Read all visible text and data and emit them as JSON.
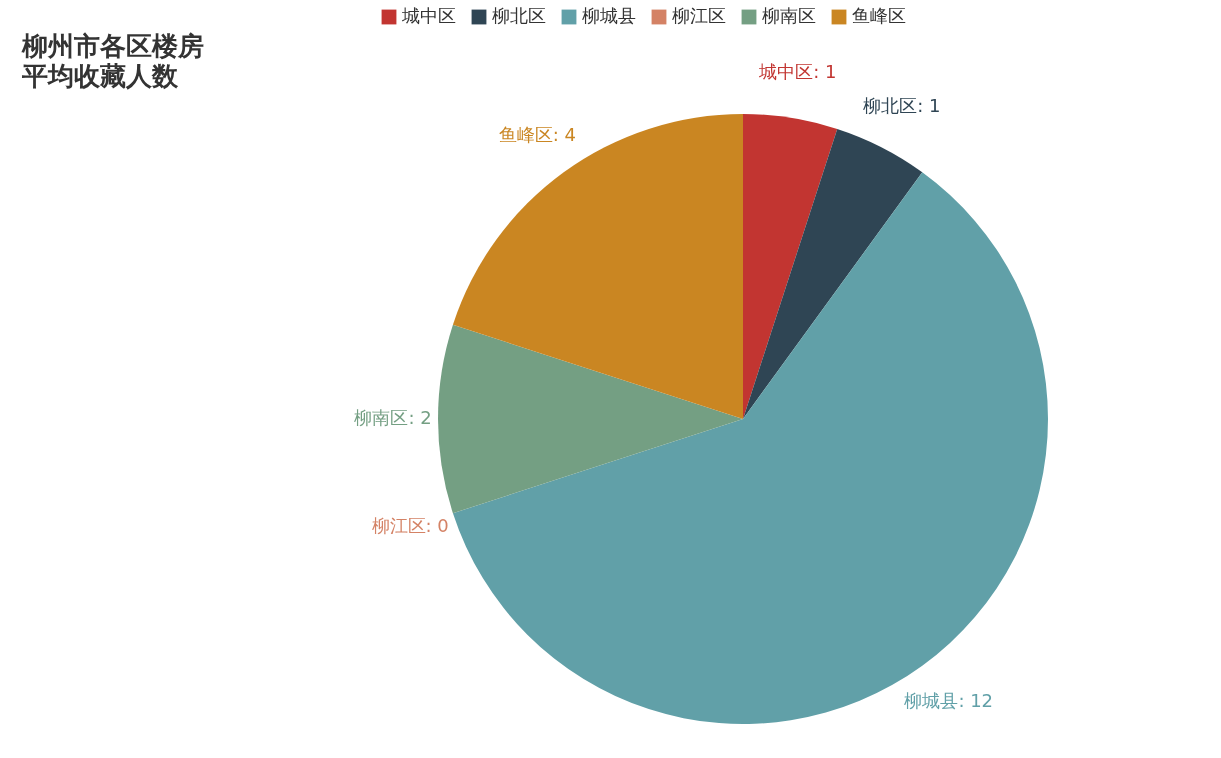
{
  "chart_data": {
    "type": "pie",
    "title": "柳州市各区楼房平均收藏人数",
    "categories": [
      "城中区",
      "柳北区",
      "柳城县",
      "柳江区",
      "柳南区",
      "鱼峰区"
    ],
    "values": [
      1,
      1,
      12,
      0,
      2,
      4
    ],
    "value_labels": [
      "城中区: 1",
      "柳北区: 1",
      "柳城县: 12",
      "柳江区: 0",
      "柳南区: 2",
      "鱼峰区: 4"
    ],
    "colors": [
      "#c23531",
      "#2f4554",
      "#61a0a8",
      "#d48265",
      "#749f83",
      "#ca8622"
    ],
    "legend": "top"
  }
}
